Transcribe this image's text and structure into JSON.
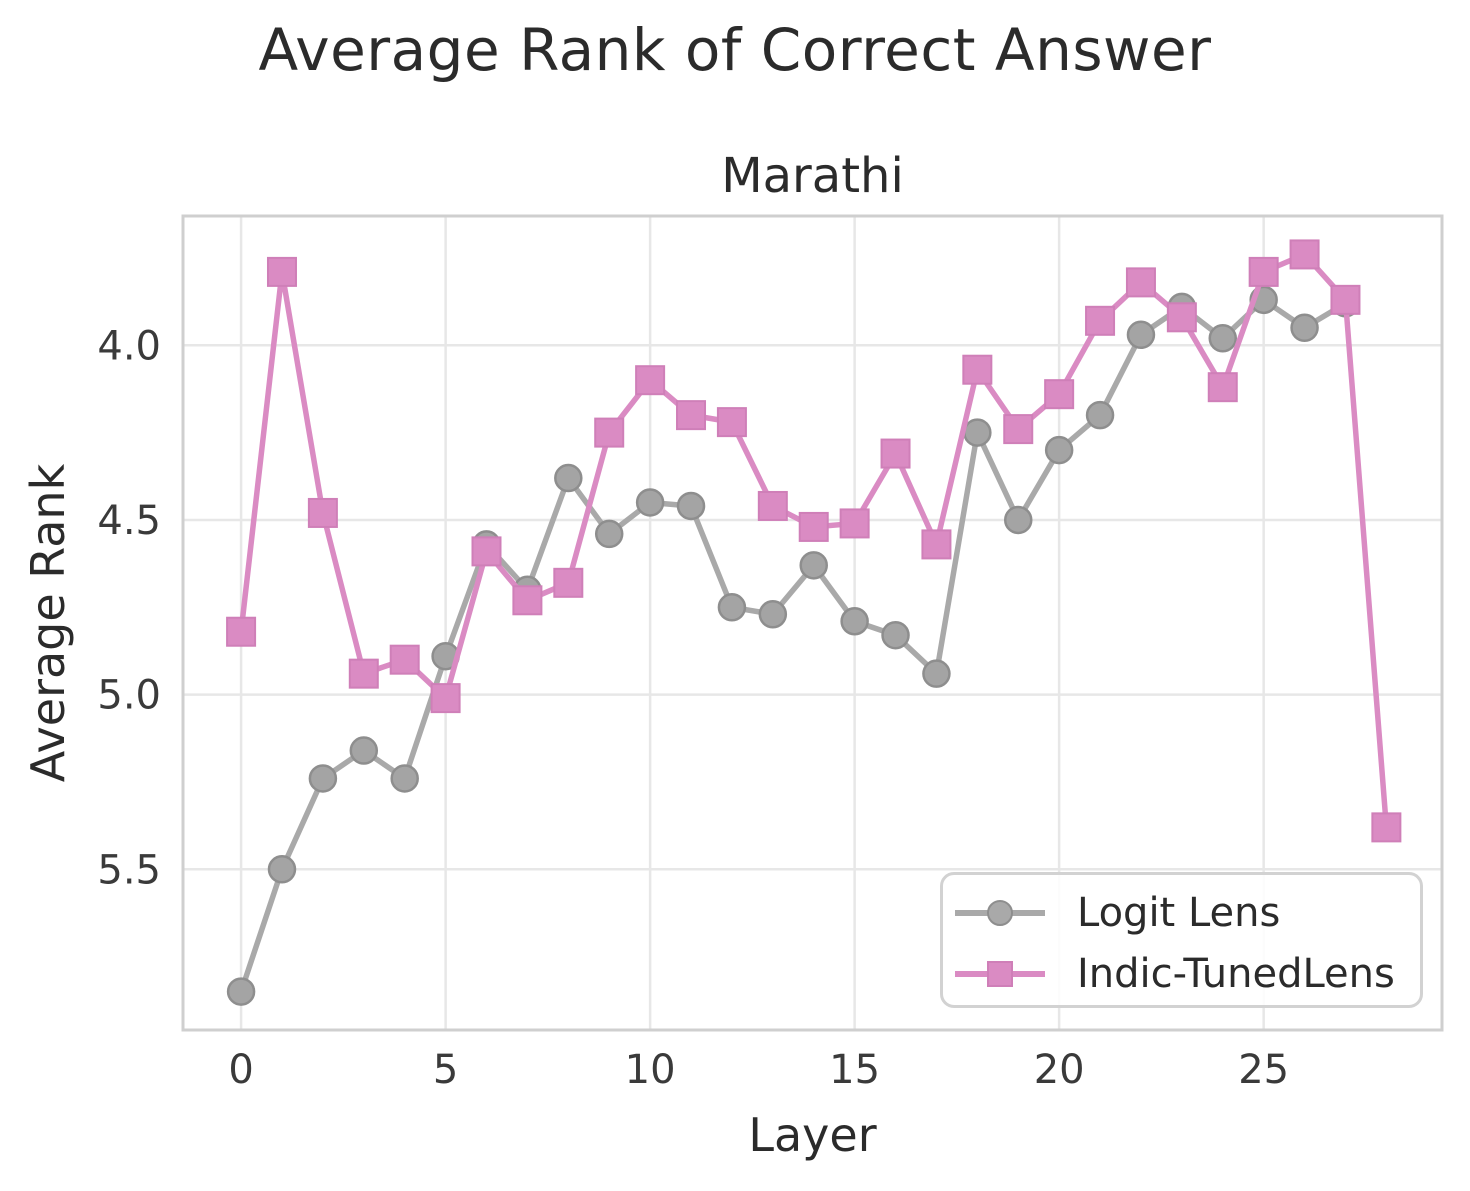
{
  "title": "Average Rank of Correct Answer",
  "subtitle": "Marathi",
  "axes": {
    "x_label": "Layer",
    "y_label": "Average Rank",
    "x_ticks": [
      {
        "value": 0,
        "label": "0"
      },
      {
        "value": 5,
        "label": "5"
      },
      {
        "value": 10,
        "label": "10"
      },
      {
        "value": 15,
        "label": "15"
      },
      {
        "value": 20,
        "label": "20"
      },
      {
        "value": 25,
        "label": "25"
      }
    ],
    "y_ticks": [
      {
        "value": 4.0,
        "label": "4.0"
      },
      {
        "value": 4.5,
        "label": "4.5"
      },
      {
        "value": 5.0,
        "label": "5.0"
      },
      {
        "value": 5.5,
        "label": "5.5"
      }
    ]
  },
  "legend": {
    "items": [
      {
        "label": "Logit Lens",
        "marker": "circle",
        "color": "#a9a9a9",
        "edge": "#8e8e8e"
      },
      {
        "label": "Indic-TunedLens",
        "marker": "square",
        "color": "#da8bc3",
        "edge": "#cf7fb8"
      }
    ]
  },
  "colors": {
    "grid": "#e7e7e7",
    "frame": "#cfcfcf",
    "tick_text": "#3a3a3a",
    "title_text": "#2b2b2b"
  },
  "chart_data": {
    "type": "line",
    "title": "Marathi",
    "suptitle": "Average Rank of Correct Answer",
    "xlabel": "Layer",
    "ylabel": "Average Rank",
    "grid": true,
    "legend_position": "lower right",
    "y_axis_inverted": true,
    "xlim": [
      -1.42,
      29.36
    ],
    "ylim": [
      5.96,
      3.63
    ],
    "series": [
      {
        "name": "Logit Lens",
        "marker": "circle",
        "color": "#a9a9a9",
        "marker_fill": "#a4a4a4",
        "marker_edge": "#8e8e8e",
        "x": [
          0,
          1,
          2,
          3,
          4,
          5,
          6,
          7,
          8,
          9,
          10,
          11,
          12,
          13,
          14,
          15,
          16,
          17,
          18,
          19,
          20,
          21,
          22,
          23,
          24,
          25,
          26,
          27
        ],
        "values": [
          5.85,
          5.5,
          5.24,
          5.16,
          5.24,
          4.89,
          4.57,
          4.7,
          4.38,
          4.54,
          4.45,
          4.46,
          4.75,
          4.77,
          4.63,
          4.79,
          4.83,
          4.94,
          4.25,
          4.5,
          4.3,
          4.2,
          3.97,
          3.89,
          3.98,
          3.87,
          3.95,
          3.88
        ]
      },
      {
        "name": "Indic-TunedLens",
        "marker": "square",
        "color": "#da8bc3",
        "marker_fill": "#da8bc3",
        "marker_edge": "#cf7fb8",
        "x": [
          0,
          1,
          2,
          3,
          4,
          5,
          6,
          7,
          8,
          9,
          10,
          11,
          12,
          13,
          14,
          15,
          16,
          17,
          18,
          19,
          20,
          21,
          22,
          23,
          24,
          25,
          26,
          27,
          28
        ],
        "values": [
          4.82,
          3.79,
          4.48,
          4.94,
          4.9,
          5.01,
          4.59,
          4.73,
          4.68,
          4.25,
          4.1,
          4.2,
          4.22,
          4.46,
          4.52,
          4.51,
          4.31,
          4.57,
          4.07,
          4.24,
          4.14,
          3.93,
          3.82,
          3.92,
          4.12,
          3.79,
          3.74,
          3.87,
          5.38
        ]
      }
    ]
  }
}
